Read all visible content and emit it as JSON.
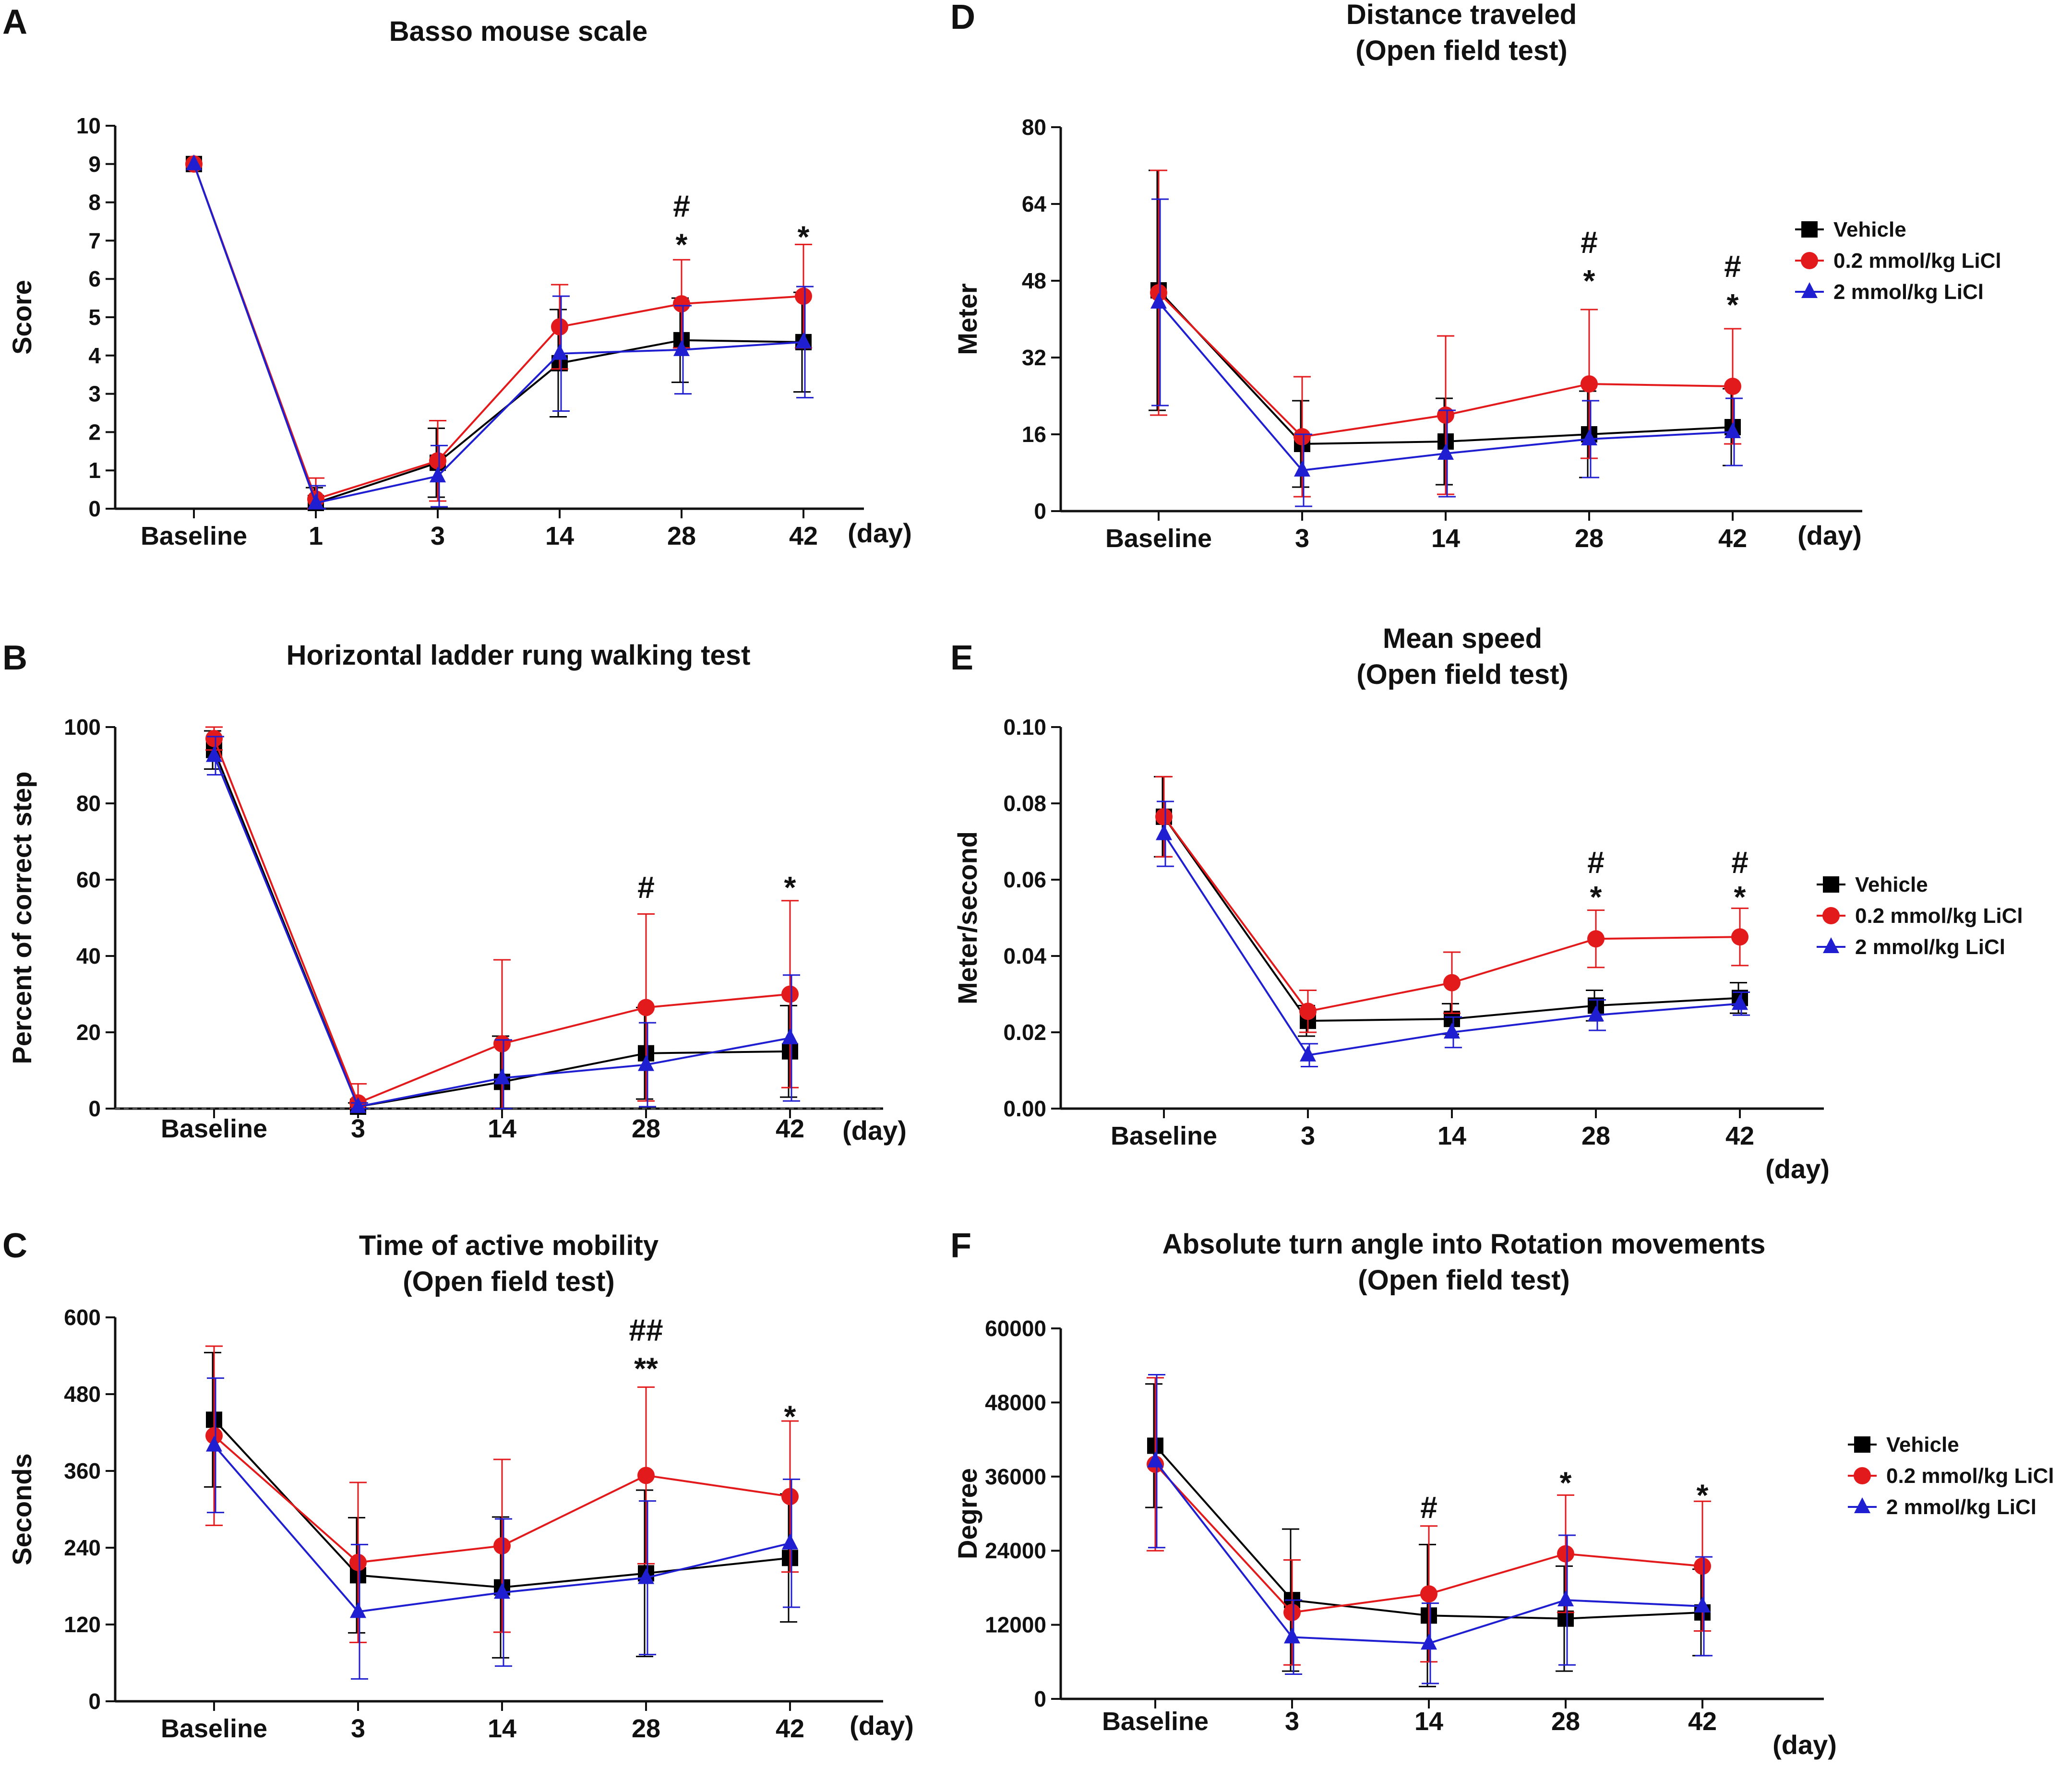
{
  "figure": {
    "colors": {
      "vehicle": "#000000",
      "low": "#e31a1c",
      "high": "#1f1fd1"
    },
    "marker_names": {
      "vehicle": "square",
      "low": "circle",
      "high": "triangle"
    }
  },
  "chart_data": [
    {
      "panel": "A",
      "type": "line",
      "title": "Basso mouse scale",
      "title2": "",
      "ylabel": "Score",
      "xunit": "(day)",
      "categories": [
        "Baseline",
        "1",
        "3",
        "14",
        "28",
        "42"
      ],
      "ylim": [
        0,
        10
      ],
      "yticks": [
        0,
        1,
        2,
        3,
        4,
        5,
        6,
        7,
        8,
        9,
        10
      ],
      "ytick_labels": [
        "0",
        "1",
        "2",
        "3",
        "4",
        "5",
        "6",
        "7",
        "8",
        "9",
        "10"
      ],
      "series": [
        {
          "name": "Vehicle",
          "values": [
            9,
            0.15,
            1.2,
            3.8,
            4.4,
            4.35
          ],
          "err": [
            0,
            0.4,
            0.9,
            1.4,
            1.1,
            1.3
          ]
        },
        {
          "name": "0.2 mmol/kg LiCl",
          "values": [
            9,
            0.25,
            1.25,
            4.75,
            5.35,
            5.55
          ],
          "err": [
            0,
            0.55,
            1.05,
            1.1,
            1.15,
            1.35
          ]
        },
        {
          "name": "2 mmol/kg LiCl",
          "values": [
            9,
            0.15,
            0.85,
            4.05,
            4.15,
            4.35
          ],
          "err": [
            0,
            0.45,
            0.8,
            1.5,
            1.15,
            1.45
          ]
        }
      ],
      "annotations": [
        {
          "category": 4,
          "y": 7.9,
          "text": "#"
        },
        {
          "category": 4,
          "y": 6.9,
          "text": "*"
        },
        {
          "category": 5,
          "y": 7.1,
          "text": "*"
        }
      ],
      "legend": null,
      "dashed_zero": false
    },
    {
      "panel": "B",
      "type": "line",
      "title": "Horizontal ladder rung walking test",
      "title2": "",
      "ylabel": "Percent of correct step",
      "xunit": "(day)",
      "categories": [
        "Baseline",
        "3",
        "14",
        "28",
        "42"
      ],
      "ylim": [
        0,
        100
      ],
      "yticks": [
        0,
        20,
        40,
        60,
        80,
        100
      ],
      "ytick_labels": [
        "0",
        "20",
        "40",
        "60",
        "80",
        "100"
      ],
      "series": [
        {
          "name": "Vehicle",
          "values": [
            94,
            0.5,
            7,
            14.5,
            15
          ],
          "err": [
            5,
            1,
            12,
            12,
            12
          ]
        },
        {
          "name": "0.2 mmol/kg LiCl",
          "values": [
            97,
            1.5,
            17,
            26.5,
            30
          ],
          "err": [
            3,
            5,
            22,
            24.5,
            24.5
          ]
        },
        {
          "name": "2 mmol/kg LiCl",
          "values": [
            92.5,
            0.5,
            8,
            11.5,
            18.5
          ],
          "err": [
            5,
            1,
            10,
            11,
            16.5
          ]
        }
      ],
      "annotations": [
        {
          "category": 3,
          "y": 58,
          "text": "#"
        },
        {
          "category": 4,
          "y": 58,
          "text": "*"
        }
      ],
      "legend": null,
      "dashed_zero": true
    },
    {
      "panel": "C",
      "type": "line",
      "title": "Time of active mobility",
      "title2": "(Open field test)",
      "ylabel": "Seconds",
      "xunit": "(day)",
      "categories": [
        "Baseline",
        "3",
        "14",
        "28",
        "42"
      ],
      "ylim": [
        0,
        600
      ],
      "yticks": [
        0,
        120,
        240,
        360,
        480,
        600
      ],
      "ytick_labels": [
        "0",
        "120",
        "240",
        "360",
        "480",
        "600"
      ],
      "series": [
        {
          "name": "Vehicle",
          "values": [
            440,
            197,
            178,
            200,
            224
          ],
          "err": [
            105,
            90,
            110,
            130,
            100
          ]
        },
        {
          "name": "0.2 mmol/kg LiCl",
          "values": [
            415,
            217,
            243,
            353,
            320
          ],
          "err": [
            140,
            125,
            135,
            138,
            118
          ]
        },
        {
          "name": "2 mmol/kg LiCl",
          "values": [
            400,
            140,
            170,
            193,
            247
          ],
          "err": [
            105,
            105,
            115,
            120,
            100
          ]
        }
      ],
      "annotations": [
        {
          "category": 3,
          "y": 580,
          "text": "##"
        },
        {
          "category": 3,
          "y": 520,
          "text": "**"
        },
        {
          "category": 4,
          "y": 445,
          "text": "*"
        }
      ],
      "legend": null,
      "dashed_zero": false
    },
    {
      "panel": "D",
      "type": "line",
      "title": "Distance traveled",
      "title2": "(Open field test)",
      "ylabel": "Meter",
      "xunit": "(day)",
      "categories": [
        "Baseline",
        "3",
        "14",
        "28",
        "42"
      ],
      "ylim": [
        0,
        80
      ],
      "yticks": [
        0,
        16,
        32,
        48,
        64,
        80
      ],
      "ytick_labels": [
        "0",
        "16",
        "32",
        "48",
        "64",
        "80"
      ],
      "series": [
        {
          "name": "Vehicle",
          "values": [
            46,
            14,
            14.5,
            16,
            17.5
          ],
          "err": [
            25,
            9,
            9,
            9,
            8
          ]
        },
        {
          "name": "0.2 mmol/kg LiCl",
          "values": [
            45.5,
            15.5,
            20,
            26.5,
            26
          ],
          "err": [
            25.5,
            12.5,
            16.5,
            15.5,
            12
          ]
        },
        {
          "name": "2 mmol/kg LiCl",
          "values": [
            43.5,
            8.5,
            12,
            15,
            16.5
          ],
          "err": [
            21.5,
            7.5,
            9,
            8,
            7
          ]
        }
      ],
      "annotations": [
        {
          "category": 3,
          "y": 56,
          "text": "#"
        },
        {
          "category": 3,
          "y": 48,
          "text": "*"
        },
        {
          "category": 4,
          "y": 51,
          "text": "#"
        },
        {
          "category": 4,
          "y": 43,
          "text": "*"
        }
      ],
      "legend": [
        "Vehicle",
        "0.2 mmol/kg LiCl",
        "2 mmol/kg LiCl"
      ],
      "dashed_zero": false
    },
    {
      "panel": "E",
      "type": "line",
      "title": "Mean speed",
      "title2": "(Open field test)",
      "ylabel": "Meter/second",
      "xunit": "(day)",
      "categories": [
        "Baseline",
        "3",
        "14",
        "28",
        "42"
      ],
      "ylim": [
        0,
        0.1
      ],
      "yticks": [
        0,
        0.02,
        0.04,
        0.06,
        0.08,
        0.1
      ],
      "ytick_labels": [
        "0.00",
        "0.02",
        "0.04",
        "0.06",
        "0.08",
        "0.10"
      ],
      "series": [
        {
          "name": "Vehicle",
          "values": [
            0.0765,
            0.023,
            0.0235,
            0.027,
            0.029
          ],
          "err": [
            0.0105,
            0.004,
            0.004,
            0.004,
            0.004
          ]
        },
        {
          "name": "0.2 mmol/kg LiCl",
          "values": [
            0.0765,
            0.0255,
            0.033,
            0.0445,
            0.045
          ],
          "err": [
            0.0105,
            0.0055,
            0.008,
            0.0075,
            0.0075
          ]
        },
        {
          "name": "2 mmol/kg LiCl",
          "values": [
            0.072,
            0.014,
            0.02,
            0.0245,
            0.0275
          ],
          "err": [
            0.0085,
            0.003,
            0.004,
            0.004,
            0.003
          ]
        }
      ],
      "annotations": [
        {
          "category": 3,
          "y": 0.0645,
          "text": "#"
        },
        {
          "category": 3,
          "y": 0.0555,
          "text": "*"
        },
        {
          "category": 4,
          "y": 0.0645,
          "text": "#"
        },
        {
          "category": 4,
          "y": 0.0555,
          "text": "*"
        }
      ],
      "legend": [
        "Vehicle",
        "0.2 mmol/kg LiCl",
        "2 mmol/kg LiCl"
      ],
      "dashed_zero": false
    },
    {
      "panel": "F",
      "type": "line",
      "title": "Absolute turn angle into Rotation movements",
      "title2": "(Open field test)",
      "ylabel": "Degree",
      "xunit": "(day)",
      "categories": [
        "Baseline",
        "3",
        "14",
        "28",
        "42"
      ],
      "ylim": [
        0,
        60000
      ],
      "yticks": [
        0,
        12000,
        24000,
        36000,
        48000,
        60000
      ],
      "ytick_labels": [
        "0",
        "12000",
        "24000",
        "36000",
        "48000",
        "60000"
      ],
      "series": [
        {
          "name": "Vehicle",
          "values": [
            41000,
            16000,
            13500,
            13000,
            14000
          ],
          "err": [
            10000,
            11500,
            11500,
            8500,
            7000
          ]
        },
        {
          "name": "0.2 mmol/kg LiCl",
          "values": [
            38000,
            14000,
            17000,
            23500,
            21500
          ],
          "err": [
            14000,
            8500,
            11000,
            9500,
            10500
          ]
        },
        {
          "name": "2 mmol/kg LiCl",
          "values": [
            38500,
            10000,
            9000,
            16000,
            15000
          ],
          "err": [
            14000,
            6000,
            6500,
            10500,
            8000
          ]
        }
      ],
      "annotations": [
        {
          "category": 2,
          "y": 31000,
          "text": "#"
        },
        {
          "category": 3,
          "y": 35000,
          "text": "*"
        },
        {
          "category": 4,
          "y": 33000,
          "text": "*"
        }
      ],
      "legend": [
        "Vehicle",
        "0.2 mmol/kg LiCl",
        "2 mmol/kg LiCl"
      ],
      "dashed_zero": false
    }
  ]
}
